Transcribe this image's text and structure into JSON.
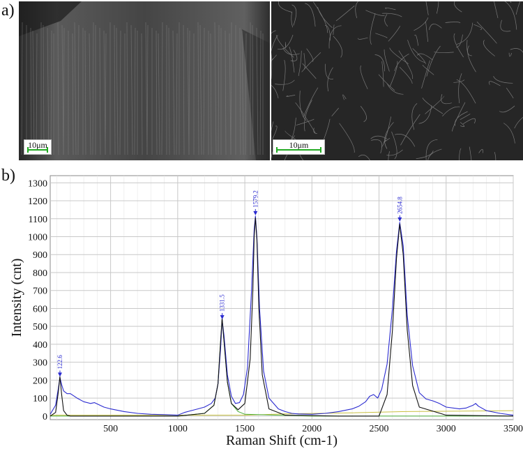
{
  "panels": {
    "a_label": "a)",
    "b_label": "b)"
  },
  "sem": {
    "left_scalebar": "10μm",
    "right_scalebar": "10μm"
  },
  "colors": {
    "raw_spectrum": "#2a2ad0",
    "fit_total": "#111111",
    "fit_component_1": "#4caf3a",
    "fit_component_2": "#c8c040",
    "peak_label": "#2a2ad0",
    "grid": "#c8c8c8"
  },
  "chart_data": {
    "type": "line",
    "xlabel": "Raman Shift (cm-1)",
    "ylabel": "Intensity (cnt)",
    "xlim": [
      50,
      3500
    ],
    "ylim": [
      -20,
      1340
    ],
    "xticks": [
      500,
      1000,
      1500,
      2000,
      2500,
      3000,
      3500
    ],
    "yticks": [
      0,
      100,
      200,
      300,
      400,
      500,
      600,
      700,
      800,
      900,
      1000,
      1100,
      1200,
      1300
    ],
    "grid": true,
    "peaks": [
      {
        "label": "122.6",
        "x": 122.6,
        "y": 215
      },
      {
        "label": "1331.5",
        "x": 1331.5,
        "y": 535
      },
      {
        "label": "1579.2",
        "x": 1579.2,
        "y": 1115
      },
      {
        "label": "2654.8",
        "x": 2654.8,
        "y": 1080
      }
    ],
    "series": [
      {
        "kind": "raw",
        "x": [
          50,
          90,
          110,
          122,
          135,
          150,
          175,
          200,
          250,
          300,
          350,
          380,
          450,
          500,
          600,
          700,
          800,
          900,
          1000,
          1050,
          1100,
          1150,
          1200,
          1250,
          1280,
          1300,
          1320,
          1331,
          1345,
          1370,
          1400,
          1430,
          1460,
          1490,
          1520,
          1550,
          1570,
          1579,
          1590,
          1610,
          1640,
          1680,
          1750,
          1800,
          1850,
          1900,
          2000,
          2100,
          2200,
          2300,
          2350,
          2400,
          2430,
          2460,
          2490,
          2520,
          2560,
          2600,
          2630,
          2654,
          2680,
          2710,
          2750,
          2800,
          2850,
          2900,
          2950,
          3000,
          3100,
          3150,
          3200,
          3220,
          3240,
          3300,
          3400,
          3500
        ],
        "y": [
          10,
          60,
          150,
          215,
          175,
          140,
          125,
          125,
          100,
          80,
          70,
          75,
          50,
          40,
          25,
          15,
          10,
          8,
          5,
          20,
          30,
          40,
          50,
          70,
          100,
          180,
          380,
          535,
          450,
          230,
          110,
          70,
          75,
          120,
          270,
          700,
          1040,
          1115,
          1000,
          600,
          250,
          100,
          40,
          25,
          15,
          12,
          10,
          15,
          25,
          40,
          55,
          80,
          110,
          120,
          100,
          150,
          290,
          600,
          920,
          1080,
          950,
          560,
          280,
          130,
          95,
          85,
          70,
          50,
          40,
          45,
          60,
          70,
          55,
          30,
          15,
          5
        ]
      },
      {
        "kind": "fit",
        "x": [
          50,
          90,
          110,
          122,
          135,
          150,
          175,
          200,
          300,
          600,
          1000,
          1200,
          1270,
          1300,
          1320,
          1331,
          1345,
          1370,
          1400,
          1450,
          1500,
          1540,
          1560,
          1570,
          1579,
          1590,
          1605,
          1630,
          1680,
          1800,
          2200,
          2500,
          2560,
          2600,
          2630,
          2654,
          2680,
          2710,
          2750,
          2800,
          3000,
          3500
        ],
        "y": [
          0,
          20,
          130,
          220,
          120,
          30,
          5,
          0,
          0,
          0,
          0,
          15,
          60,
          180,
          420,
          545,
          420,
          190,
          70,
          35,
          70,
          320,
          700,
          1000,
          1105,
          980,
          600,
          230,
          40,
          5,
          0,
          0,
          120,
          480,
          880,
          1070,
          900,
          480,
          170,
          50,
          5,
          0
        ]
      },
      {
        "kind": "component",
        "x": [
          50,
          1000,
          1200,
          1270,
          1300,
          1320,
          1331,
          1345,
          1370,
          1400,
          1450,
          1500,
          2000,
          3500
        ],
        "y": [
          0,
          0,
          15,
          60,
          180,
          420,
          540,
          420,
          190,
          70,
          25,
          10,
          0,
          0
        ]
      },
      {
        "kind": "baseline",
        "x": [
          50,
          1500,
          1800,
          2300,
          2700,
          3500
        ],
        "y": [
          5,
          5,
          12,
          18,
          25,
          30
        ]
      }
    ]
  }
}
